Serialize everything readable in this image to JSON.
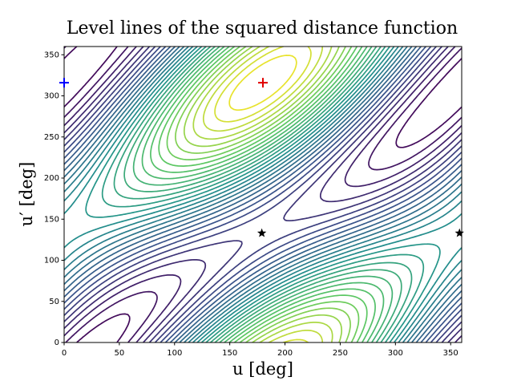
{
  "chart_data": {
    "type": "contour",
    "title": "Level lines of the squared distance function",
    "x_label": "u [deg]",
    "y_label": "u′ [deg]",
    "xlim": [
      0,
      360
    ],
    "ylim": [
      0,
      360
    ],
    "xticks": [
      0,
      50,
      100,
      150,
      200,
      250,
      300,
      350
    ],
    "yticks": [
      0,
      50,
      100,
      150,
      200,
      250,
      300,
      350
    ],
    "colormap": "viridis",
    "markers": [
      {
        "x": 180,
        "y": 316,
        "marker": "plus",
        "color": "#e00000"
      },
      {
        "x": 0,
        "y": 316,
        "marker": "plus",
        "color": "#0000ff"
      },
      {
        "x": 179,
        "y": 133,
        "marker": "star",
        "color": "#000000"
      },
      {
        "x": 358,
        "y": 133,
        "marker": "star",
        "color": "#000000"
      }
    ]
  }
}
